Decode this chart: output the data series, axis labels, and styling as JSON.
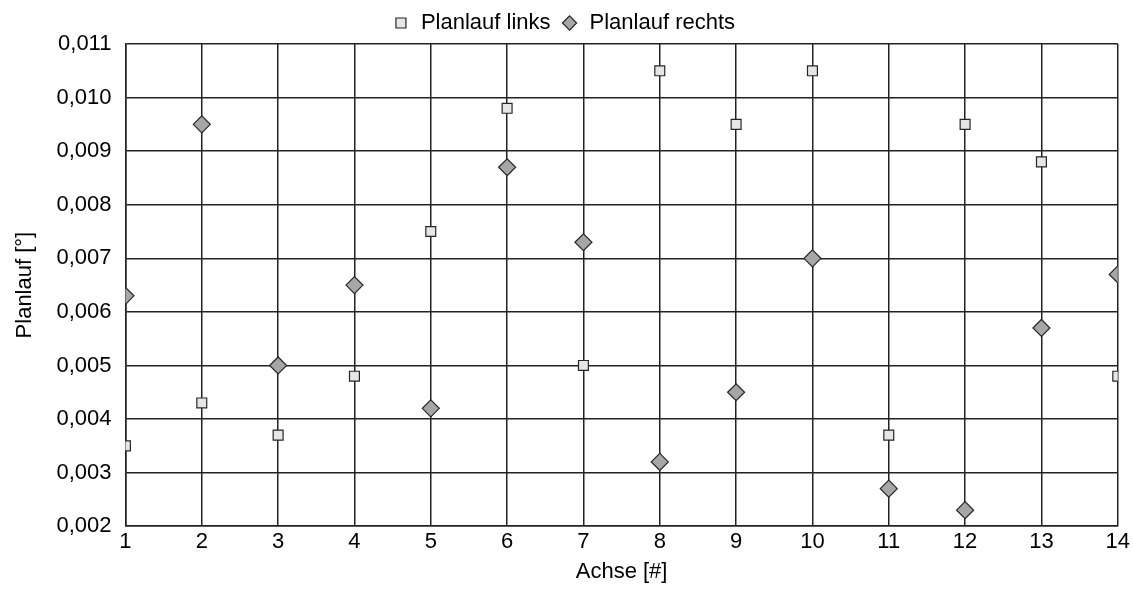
{
  "chart_data": {
    "type": "scatter",
    "xlabel": "Achse [#]",
    "ylabel": "Planlauf [°]",
    "x": [
      1,
      2,
      3,
      4,
      5,
      6,
      7,
      8,
      9,
      10,
      11,
      12,
      13,
      14
    ],
    "series": [
      {
        "name": "Planlauf links",
        "color": "#e6e6e6",
        "marker": "square",
        "values": [
          0.0035,
          0.0043,
          0.0037,
          0.0048,
          0.0075,
          0.0098,
          0.005,
          0.0105,
          0.0095,
          0.0105,
          0.0037,
          0.0095,
          0.0088,
          0.0048
        ]
      },
      {
        "name": "Planlauf rechts",
        "color": "#a6a6a6",
        "marker": "diamond",
        "values": [
          0.0063,
          0.0095,
          0.005,
          0.0065,
          0.0042,
          0.0087,
          0.0073,
          0.0032,
          0.0045,
          0.007,
          0.0027,
          0.0023,
          0.0057,
          0.0067
        ]
      }
    ],
    "xlim": [
      1,
      14
    ],
    "xticks": [
      1,
      2,
      3,
      4,
      5,
      6,
      7,
      8,
      9,
      10,
      11,
      12,
      13,
      14
    ],
    "ylim": [
      0.002,
      0.011
    ],
    "yticks": [
      {
        "value": 0.002,
        "label": "0,002"
      },
      {
        "value": 0.003,
        "label": "0,003"
      },
      {
        "value": 0.004,
        "label": "0,004"
      },
      {
        "value": 0.005,
        "label": "0,005"
      },
      {
        "value": 0.006,
        "label": "0,006"
      },
      {
        "value": 0.007,
        "label": "0,007"
      },
      {
        "value": 0.008,
        "label": "0,008"
      },
      {
        "value": 0.009,
        "label": "0,009"
      },
      {
        "value": 0.01,
        "label": "0,010"
      },
      {
        "value": 0.011,
        "label": "0,011"
      }
    ],
    "grid": true,
    "legend": "top"
  }
}
